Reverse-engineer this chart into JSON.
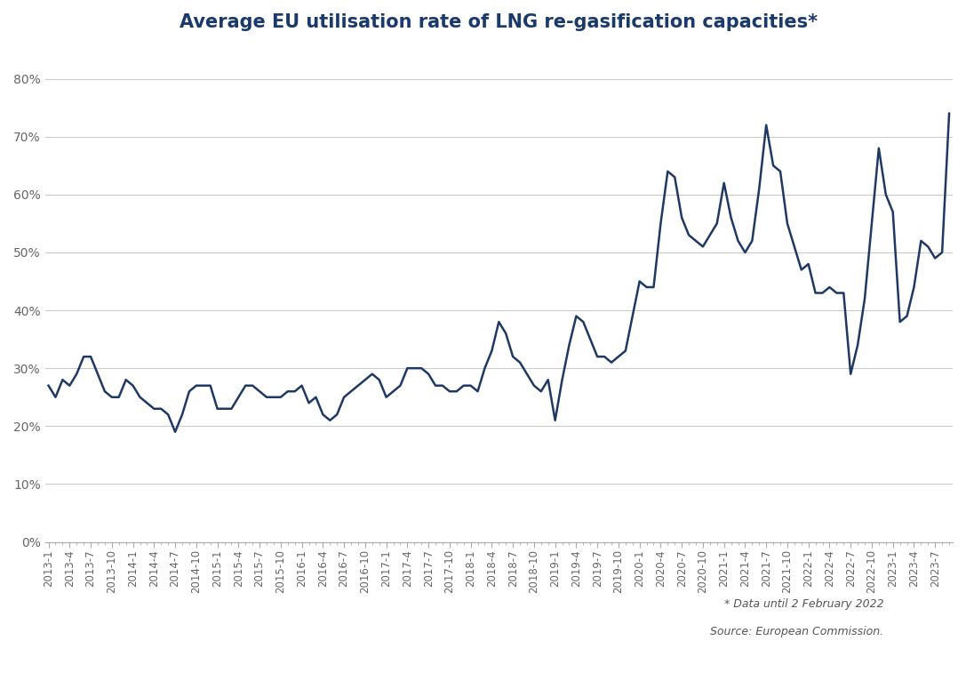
{
  "title": "Average EU utilisation rate of LNG re-gasification capacities*",
  "annotation_line1": "* Data until 2 February 2022",
  "annotation_line2": "Source: European Commission.",
  "line_color": "#1f3864",
  "background_color": "#ffffff",
  "grid_color": "#c8c8c8",
  "ylim": [
    0,
    0.85
  ],
  "yticks": [
    0.0,
    0.1,
    0.2,
    0.3,
    0.4,
    0.5,
    0.6,
    0.7,
    0.8
  ],
  "values": [
    0.27,
    0.25,
    0.28,
    0.27,
    0.29,
    0.32,
    0.32,
    0.29,
    0.26,
    0.25,
    0.25,
    0.28,
    0.27,
    0.25,
    0.24,
    0.23,
    0.23,
    0.22,
    0.19,
    0.22,
    0.26,
    0.27,
    0.27,
    0.27,
    0.23,
    0.23,
    0.23,
    0.25,
    0.27,
    0.27,
    0.26,
    0.25,
    0.25,
    0.25,
    0.26,
    0.26,
    0.27,
    0.24,
    0.25,
    0.22,
    0.21,
    0.22,
    0.25,
    0.26,
    0.27,
    0.28,
    0.29,
    0.28,
    0.25,
    0.26,
    0.27,
    0.3,
    0.3,
    0.3,
    0.29,
    0.27,
    0.27,
    0.26,
    0.26,
    0.27,
    0.27,
    0.26,
    0.3,
    0.33,
    0.38,
    0.36,
    0.32,
    0.31,
    0.29,
    0.27,
    0.26,
    0.28,
    0.21,
    0.28,
    0.34,
    0.39,
    0.38,
    0.35,
    0.32,
    0.32,
    0.31,
    0.32,
    0.33,
    0.39,
    0.45,
    0.44,
    0.44,
    0.55,
    0.64,
    0.63,
    0.56,
    0.53,
    0.52,
    0.51,
    0.53,
    0.55,
    0.62,
    0.56,
    0.52,
    0.5,
    0.52,
    0.61,
    0.72,
    0.65,
    0.64,
    0.55,
    0.51,
    0.47,
    0.48,
    0.43,
    0.43,
    0.44,
    0.43,
    0.43,
    0.29,
    0.34,
    0.42,
    0.55,
    0.68,
    0.6,
    0.57,
    0.38,
    0.39,
    0.44,
    0.52,
    0.51,
    0.49,
    0.5,
    0.74
  ],
  "start_year": 2013,
  "start_month": 1,
  "label_color": "#666666",
  "tick_color": "#aaaaaa",
  "spine_color": "#aaaaaa",
  "title_color": "#1a3a6b",
  "annotation_color": "#555555"
}
